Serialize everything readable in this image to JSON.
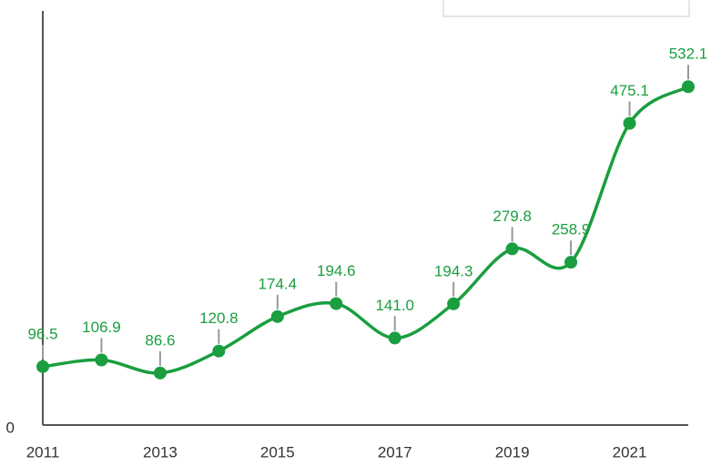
{
  "chart_data": {
    "type": "line",
    "x": [
      2011,
      2012,
      2013,
      2014,
      2015,
      2016,
      2017,
      2018,
      2019,
      2020,
      2021,
      2022
    ],
    "values": [
      96.5,
      106.9,
      86.6,
      120.8,
      174.4,
      194.6,
      141.0,
      194.3,
      279.8,
      258.9,
      475.1,
      532.1
    ],
    "value_labels": [
      "96.5",
      "106.9",
      "86.6",
      "120.8",
      "174.4",
      "194.6",
      "141.0",
      "194.3",
      "279.8",
      "258.9",
      "475.1",
      "532.1"
    ],
    "color": "#1a9e3f",
    "xlim": [
      2011,
      2022
    ],
    "xticks": [
      2011,
      2013,
      2015,
      2017,
      2019,
      2021
    ],
    "ylim": [
      0,
      650
    ],
    "yticks": [
      0
    ],
    "smooth": true
  }
}
